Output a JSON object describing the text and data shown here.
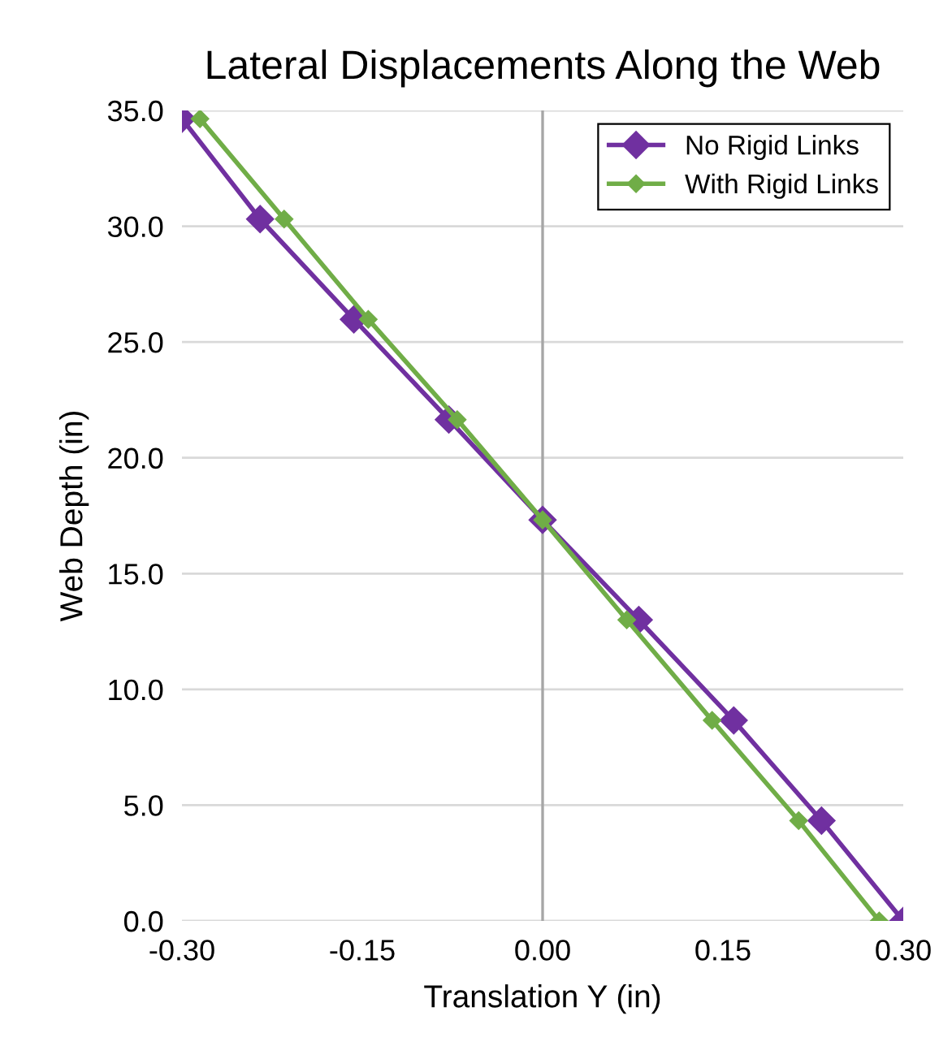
{
  "chart_data": {
    "type": "line",
    "title": "Lateral Displacements Along the Web",
    "xlabel": "Translation Y (in)",
    "ylabel": "Web Depth (in)",
    "series": [
      {
        "name": "No Rigid Links",
        "color": "#7030a0",
        "x": [
          0.3,
          0.232,
          0.159,
          0.08,
          0.0,
          -0.078,
          -0.157,
          -0.235,
          -0.3
        ],
        "values": [
          0.0,
          4.33,
          8.66,
          13.0,
          17.32,
          21.65,
          25.98,
          30.31,
          34.64
        ]
      },
      {
        "name": "With Rigid Links",
        "color": "#70ad47",
        "x": [
          0.28,
          0.213,
          0.141,
          0.07,
          0.0,
          -0.071,
          -0.145,
          -0.215,
          -0.285
        ],
        "values": [
          0.0,
          4.33,
          8.66,
          13.0,
          17.32,
          21.65,
          25.98,
          30.31,
          34.64
        ]
      }
    ],
    "xlim": [
      -0.3,
      0.3
    ],
    "ylim": [
      0,
      35
    ],
    "xticks": [
      {
        "value": -0.3,
        "label": "-0.30"
      },
      {
        "value": -0.15,
        "label": "-0.15"
      },
      {
        "value": 0.0,
        "label": "0.00"
      },
      {
        "value": 0.15,
        "label": "0.15"
      },
      {
        "value": 0.3,
        "label": "0.30"
      }
    ],
    "yticks": [
      {
        "value": 0,
        "label": "0.0"
      },
      {
        "value": 5,
        "label": "5.0"
      },
      {
        "value": 10,
        "label": "10.0"
      },
      {
        "value": 15,
        "label": "15.0"
      },
      {
        "value": 20,
        "label": "20.0"
      },
      {
        "value": 25,
        "label": "25.0"
      },
      {
        "value": 30,
        "label": "30.0"
      },
      {
        "value": 35,
        "label": "35.0"
      }
    ],
    "ref_lines": [
      {
        "axis": "x",
        "value": 0.0,
        "color": "#a6a6a6"
      }
    ],
    "grid": "y",
    "legend": "top right",
    "marker": "diamond",
    "line_style": "solid"
  }
}
